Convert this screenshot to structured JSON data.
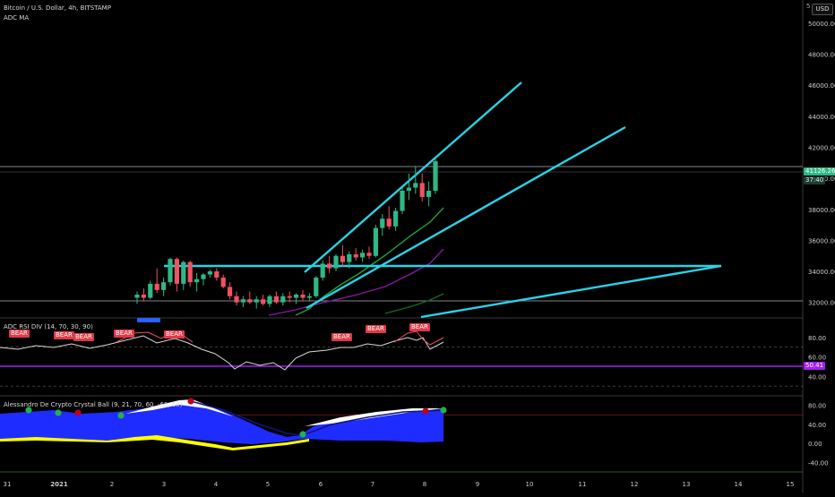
{
  "header": {
    "symbol_title": "Bitcoin / U.S. Dollar, 4h, BITSTAMP",
    "indicator": "ADC MA",
    "currency_button": "USD",
    "corner_marker": "5"
  },
  "price_pane": {
    "yticks": [
      "50000.00",
      "48000.00",
      "46000.00",
      "44000.00",
      "42000.00",
      "40000.00",
      "38000.00",
      "36000.00",
      "34000.00",
      "32000.00"
    ],
    "last_price_label": "41126.26",
    "countdown_label": "37:40",
    "colors": {
      "up": "#2eb886",
      "down": "#ef5260",
      "trend_lines": "#29d3e8",
      "ma_green": "#1ea13a",
      "ma_purple": "#8a16a8",
      "ma_darkgreen": "#0e6e1c"
    },
    "signal_label": "BEAR"
  },
  "rsi_pane": {
    "title": "ADC RSI DIV (14, 70, 30, 90)",
    "yticks": [
      "80.00",
      "60.00",
      "40.00"
    ],
    "current_label": "50.41",
    "bear_tag": "BEAR",
    "line_colors": {
      "rsi": "#d9d9d9",
      "hot": "#ef5260",
      "level": "#a020f0"
    }
  },
  "ball_pane": {
    "title": "Alessandro De Crypto Crystal Ball (9, 21, 70, 60, -60, 60)",
    "yticks": [
      "80.00",
      "40.00",
      "0.00",
      "-40.00"
    ],
    "colors": {
      "fill": "#1f2cff",
      "yellow": "#ffff00",
      "white": "#ffffff",
      "dot_green": "#22b14c",
      "dot_red": "#c0001a"
    }
  },
  "time_axis": {
    "labels": [
      "31",
      "2021",
      "2",
      "3",
      "4",
      "5",
      "6",
      "7",
      "8",
      "9",
      "10",
      "11",
      "12",
      "13",
      "14",
      "15"
    ]
  },
  "chart_data": {
    "type": "candlestick",
    "title": "Bitcoin / U.S. Dollar, 4h, BITSTAMP",
    "xlabel": "",
    "ylabel": "",
    "ylim": [
      31000,
      51500
    ],
    "x_ticks": [
      "31",
      "2021",
      "2",
      "3",
      "4",
      "5",
      "6",
      "7",
      "8",
      "9",
      "10",
      "11",
      "12",
      "13",
      "14",
      "15"
    ],
    "candles": [
      {
        "o": 32300,
        "h": 32700,
        "l": 31900,
        "c": 32500
      },
      {
        "o": 32500,
        "h": 32900,
        "l": 32100,
        "c": 32300
      },
      {
        "o": 32300,
        "h": 33400,
        "l": 32200,
        "c": 33200
      },
      {
        "o": 33200,
        "h": 34200,
        "l": 32600,
        "c": 32800
      },
      {
        "o": 32800,
        "h": 33600,
        "l": 32400,
        "c": 33300
      },
      {
        "o": 33300,
        "h": 34900,
        "l": 33100,
        "c": 34800
      },
      {
        "o": 34800,
        "h": 34900,
        "l": 32700,
        "c": 33200
      },
      {
        "o": 33200,
        "h": 34700,
        "l": 32800,
        "c": 34600
      },
      {
        "o": 34600,
        "h": 34700,
        "l": 33000,
        "c": 33300
      },
      {
        "o": 33300,
        "h": 33900,
        "l": 32700,
        "c": 33500
      },
      {
        "o": 33500,
        "h": 33900,
        "l": 33100,
        "c": 33800
      },
      {
        "o": 33800,
        "h": 34100,
        "l": 33600,
        "c": 34000
      },
      {
        "o": 34000,
        "h": 34200,
        "l": 33400,
        "c": 33600
      },
      {
        "o": 33600,
        "h": 33800,
        "l": 32900,
        "c": 33000
      },
      {
        "o": 33000,
        "h": 33300,
        "l": 32200,
        "c": 32400
      },
      {
        "o": 32400,
        "h": 32700,
        "l": 31800,
        "c": 32000
      },
      {
        "o": 32000,
        "h": 32400,
        "l": 31700,
        "c": 32200
      },
      {
        "o": 32200,
        "h": 32700,
        "l": 31900,
        "c": 32000
      },
      {
        "o": 32000,
        "h": 32400,
        "l": 31600,
        "c": 32200
      },
      {
        "o": 32200,
        "h": 32500,
        "l": 31800,
        "c": 31900
      },
      {
        "o": 31900,
        "h": 32500,
        "l": 31700,
        "c": 32400
      },
      {
        "o": 32400,
        "h": 32700,
        "l": 31900,
        "c": 32000
      },
      {
        "o": 32000,
        "h": 32600,
        "l": 31800,
        "c": 32400
      },
      {
        "o": 32400,
        "h": 32700,
        "l": 32000,
        "c": 32300
      },
      {
        "o": 32300,
        "h": 32600,
        "l": 31900,
        "c": 32500
      },
      {
        "o": 32500,
        "h": 32800,
        "l": 32100,
        "c": 32300
      },
      {
        "o": 32300,
        "h": 32600,
        "l": 32100,
        "c": 32400
      },
      {
        "o": 32400,
        "h": 33700,
        "l": 32300,
        "c": 33600
      },
      {
        "o": 33600,
        "h": 34700,
        "l": 33400,
        "c": 34500
      },
      {
        "o": 34500,
        "h": 35000,
        "l": 33900,
        "c": 34200
      },
      {
        "o": 34200,
        "h": 35100,
        "l": 34000,
        "c": 35000
      },
      {
        "o": 35000,
        "h": 35700,
        "l": 34300,
        "c": 34600
      },
      {
        "o": 34600,
        "h": 35300,
        "l": 34200,
        "c": 35100
      },
      {
        "o": 35100,
        "h": 35500,
        "l": 34700,
        "c": 34900
      },
      {
        "o": 34900,
        "h": 35400,
        "l": 34600,
        "c": 35200
      },
      {
        "o": 35200,
        "h": 35600,
        "l": 34800,
        "c": 35000
      },
      {
        "o": 35000,
        "h": 37000,
        "l": 34900,
        "c": 36800
      },
      {
        "o": 36800,
        "h": 37700,
        "l": 36300,
        "c": 37400
      },
      {
        "o": 37400,
        "h": 38200,
        "l": 36700,
        "c": 36900
      },
      {
        "o": 36900,
        "h": 38100,
        "l": 36600,
        "c": 37900
      },
      {
        "o": 37900,
        "h": 39400,
        "l": 37700,
        "c": 39200
      },
      {
        "o": 39200,
        "h": 40300,
        "l": 38600,
        "c": 39400
      },
      {
        "o": 39400,
        "h": 40800,
        "l": 39000,
        "c": 39700
      },
      {
        "o": 39700,
        "h": 40300,
        "l": 38500,
        "c": 38800
      },
      {
        "o": 38800,
        "h": 39800,
        "l": 38200,
        "c": 39200
      },
      {
        "o": 39200,
        "h": 41300,
        "l": 39000,
        "c": 41100
      }
    ]
  }
}
